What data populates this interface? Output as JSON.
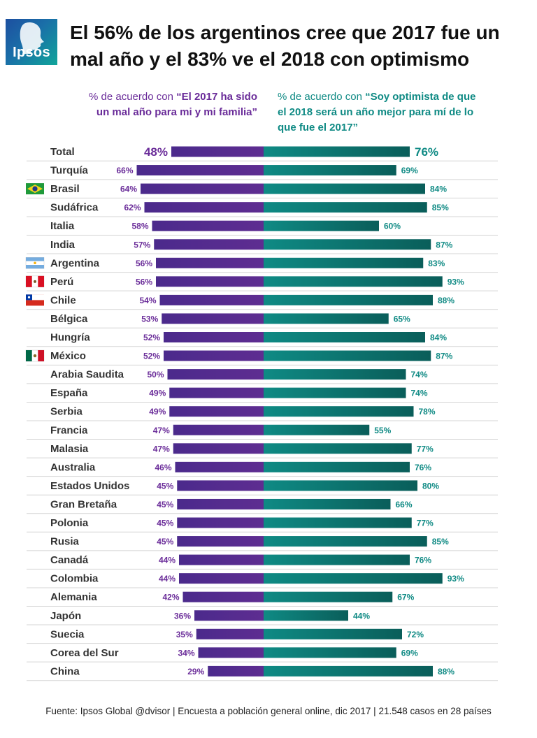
{
  "logo": {
    "text": "Ipsos"
  },
  "title": "El 56% de los argentinos cree que 2017 fue un mal año y el 83% ve el 2018 con optimismo",
  "colors": {
    "left_bar": "#5e2d91",
    "right_bar": "#0f8a84",
    "left_text": "#6a2c99",
    "right_text": "#0f8a84"
  },
  "headers": {
    "left_prefix": "% de acuerdo con ",
    "left_quote": "“El 2017 ha sido un mal año para mi y mi familia”",
    "right_prefix": "% de acuerdo con ",
    "right_quote": "“Soy optimista de que el 2018 será un año mejor para mí de lo que fue el 2017”"
  },
  "chart_data": {
    "type": "bar",
    "orientation": "diverging-horizontal",
    "series": [
      {
        "name": "El 2017 ha sido un mal año para mi y mi familia",
        "side": "left",
        "values": [
          48,
          66,
          64,
          62,
          58,
          57,
          56,
          56,
          54,
          53,
          52,
          52,
          50,
          49,
          49,
          47,
          47,
          46,
          45,
          45,
          45,
          45,
          44,
          44,
          42,
          36,
          35,
          34,
          29
        ]
      },
      {
        "name": "Soy optimista de que el 2018 será un año mejor para mí de lo que fue el 2017",
        "side": "right",
        "values": [
          76,
          69,
          84,
          85,
          60,
          87,
          83,
          93,
          88,
          65,
          84,
          87,
          74,
          74,
          78,
          55,
          77,
          76,
          80,
          66,
          77,
          85,
          76,
          93,
          67,
          44,
          72,
          69,
          88
        ]
      }
    ],
    "categories": [
      "Total",
      "Turquía",
      "Brasil",
      "Sudáfrica",
      "Italia",
      "India",
      "Argentina",
      "Perú",
      "Chile",
      "Bélgica",
      "Hungría",
      "México",
      "Arabia Saudita",
      "España",
      "Serbia",
      "Francia",
      "Malasia",
      "Australia",
      "Estados Unidos",
      "Gran Bretaña",
      "Polonia",
      "Rusia",
      "Canadá",
      "Colombia",
      "Alemania",
      "Japón",
      "Suecia",
      "Corea del Sur",
      "China"
    ],
    "flags": [
      "",
      "",
      "brazil-flag",
      "",
      "",
      "",
      "argentina-flag",
      "peru-flag",
      "chile-flag",
      "",
      "",
      "mexico-flag",
      "",
      "",
      "",
      "",
      "",
      "",
      "",
      "",
      "",
      "",
      "",
      "",
      "",
      "",
      "",
      "",
      ""
    ],
    "value_suffix": "%",
    "xlim": [
      0,
      100
    ]
  },
  "source": "Fuente: Ipsos Global @dvisor | Encuesta a población general online, dic 2017 | 21.548 casos en 28 países"
}
